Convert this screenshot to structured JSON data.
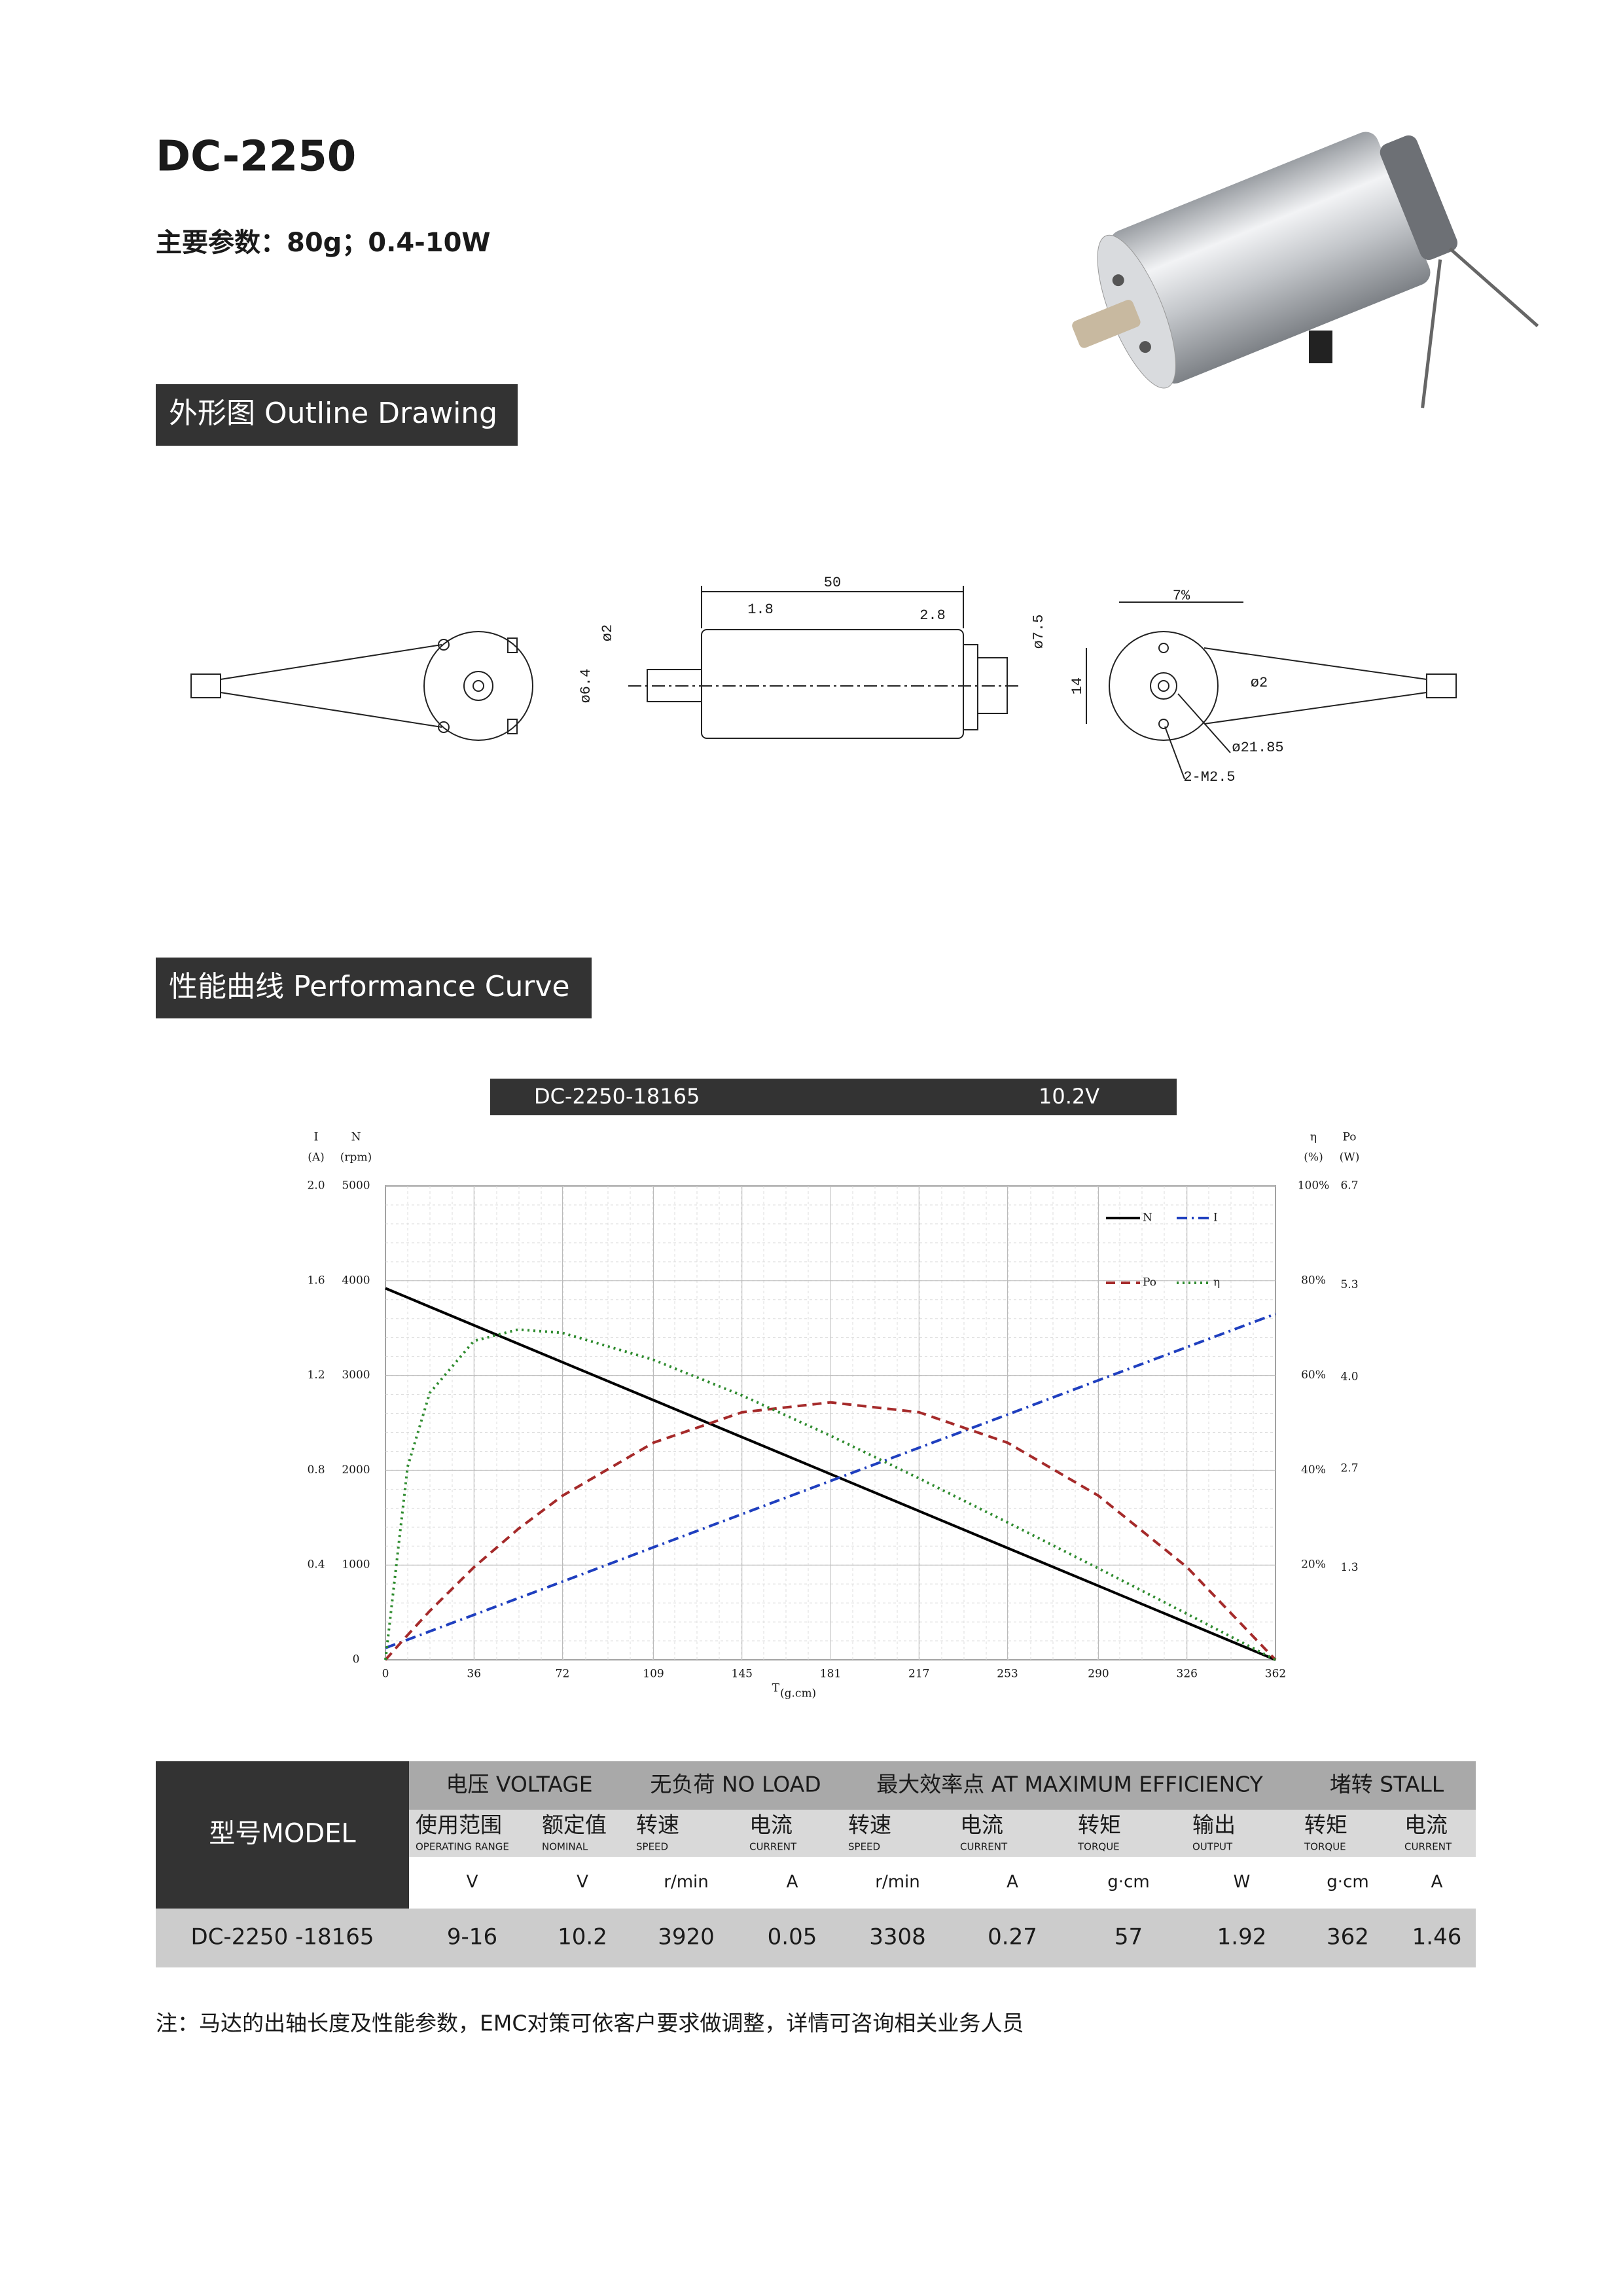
{
  "header": {
    "title": "DC-2250",
    "subtitle": "主要参数：80g；0.4-10W"
  },
  "sections": {
    "outline": "外形图 Outline Drawing",
    "performance": "性能曲线 Performance Curve"
  },
  "drawing": {
    "labels": [
      "50",
      "1.8",
      "2.8",
      "ø7.5",
      "ø2",
      "ø6.4",
      "7%",
      "14",
      "ø2",
      "ø21.85",
      "2-M2.5"
    ]
  },
  "chart_data": {
    "type": "line",
    "title": "DC-2250-18165",
    "subtitle": "10.2V",
    "x_label": "T",
    "x_unit": "(g.cm)",
    "x": [
      0,
      9,
      18,
      36,
      54,
      72,
      109,
      145,
      181,
      217,
      253,
      290,
      326,
      362
    ],
    "xlim": [
      0,
      362
    ],
    "xticks": [
      0,
      36,
      72,
      109,
      145,
      181,
      217,
      253,
      290,
      326,
      362
    ],
    "grid": true,
    "legend": "top-right",
    "axes": [
      {
        "name": "I",
        "unit": "(A)",
        "side": "left",
        "lim": [
          0,
          2
        ],
        "ticks": [
          0.4,
          0.8,
          1.2,
          1.6,
          {
            "value": 2,
            "label": "2.0"
          }
        ]
      },
      {
        "name": "N",
        "unit": "(rpm)",
        "side": "left",
        "lim": [
          0,
          5000
        ],
        "ticks": [
          0,
          1000,
          2000,
          3000,
          4000,
          5000
        ]
      },
      {
        "name": "η",
        "unit": "(%)",
        "side": "right",
        "lim": [
          0,
          100
        ],
        "ticks": [
          {
            "value": 20,
            "label": "20%"
          },
          {
            "value": 40,
            "label": "40%"
          },
          {
            "value": 60,
            "label": "60%"
          },
          {
            "value": 80,
            "label": "80%"
          },
          {
            "value": 100,
            "label": "100%"
          }
        ]
      },
      {
        "name": "Po",
        "unit": "(W)",
        "side": "right",
        "lim": [
          0,
          6.7
        ],
        "ticks": [
          1.3,
          2.7,
          {
            "value": 4,
            "label": "4.0"
          },
          5.3,
          6.7
        ]
      }
    ],
    "series": [
      {
        "name": "N",
        "axis": 1,
        "color": "#000000",
        "style": "solid",
        "values": [
          3920,
          3823,
          3725,
          3530,
          3335,
          3140,
          2740,
          2350,
          1960,
          1570,
          1180,
          780,
          390,
          0
        ]
      },
      {
        "name": "I",
        "axis": 0,
        "color": "#1f3fbf",
        "style": "dashdot",
        "values": [
          0.05,
          0.085,
          0.12,
          0.19,
          0.26,
          0.33,
          0.475,
          0.615,
          0.755,
          0.895,
          1.035,
          1.18,
          1.32,
          1.46
        ]
      },
      {
        "name": "Po",
        "axis": 3,
        "color": "#a52a2a",
        "style": "dashed",
        "values": [
          0,
          0.35,
          0.69,
          1.31,
          1.85,
          2.32,
          3.07,
          3.5,
          3.64,
          3.5,
          3.07,
          2.32,
          1.31,
          0
        ]
      },
      {
        "name": "η",
        "axis": 2,
        "color": "#2e8b2e",
        "style": "dotted",
        "values": [
          0,
          40.7,
          56.3,
          67.3,
          69.7,
          69,
          63.3,
          55.8,
          47.3,
          38.3,
          29,
          19.3,
          9.7,
          0
        ]
      }
    ]
  },
  "table": {
    "model_header": "型号MODEL",
    "groups": [
      {
        "label": "电压 VOLTAGE",
        "columns": [
          {
            "cn": "使用范围",
            "en": "OPERATING RANGE",
            "unit": "V"
          },
          {
            "cn": "额定值",
            "en": "NOMINAL",
            "unit": "V"
          }
        ]
      },
      {
        "label": "无负荷 NO LOAD",
        "columns": [
          {
            "cn": "转速",
            "en": "SPEED",
            "unit": "r/min"
          },
          {
            "cn": "电流",
            "en": "CURRENT",
            "unit": "A"
          }
        ]
      },
      {
        "label": "最大效率点 AT MAXIMUM EFFICIENCY",
        "columns": [
          {
            "cn": "转速",
            "en": "SPEED",
            "unit": "r/min"
          },
          {
            "cn": "电流",
            "en": "CURRENT",
            "unit": "A"
          },
          {
            "cn": "转矩",
            "en": "TORQUE",
            "unit": "g·cm"
          },
          {
            "cn": "输出",
            "en": "OUTPUT",
            "unit": "W"
          }
        ]
      },
      {
        "label": "堵转 STALL",
        "columns": [
          {
            "cn": "转矩",
            "en": "TORQUE",
            "unit": "g·cm"
          },
          {
            "cn": "电流",
            "en": "CURRENT",
            "unit": "A"
          }
        ]
      }
    ],
    "rows": [
      {
        "model": "DC-2250 -18165",
        "values": [
          "9-16",
          10.2,
          3920,
          0.05,
          3308,
          0.27,
          57,
          1.92,
          362,
          1.46
        ]
      }
    ]
  },
  "note": "注：马达的出轴长度及性能参数，EMC对策可依客户要求做调整，详情可咨询相关业务人员"
}
